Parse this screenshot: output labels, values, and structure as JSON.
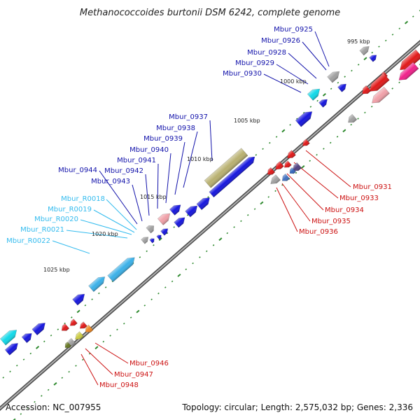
{
  "title": "Methanococcoides burtonii DSM 6242, complete genome",
  "footer": {
    "accession": "Accession: NC_007955",
    "stats": "Topology: circular; Length: 2,575,032 bp; Genes: 2,336"
  },
  "colors": {
    "backbone": "#808080",
    "tick": "#2f8a2f",
    "forward_label": "#1111aa",
    "rna_label": "#33bbee",
    "reverse_label": "#cc1111",
    "cds_forward": "#1515dd",
    "rna": "#3ab0e8",
    "cds_reverse": "#e01818",
    "pseudo_olive": "#b8b070",
    "grey": "#a0a0a0",
    "cyan": "#10d8e8",
    "pink": "#f0a0a8",
    "magenta": "#f0208a"
  },
  "kbp_markers": [
    "995 kbp",
    "1000 kbp",
    "1005 kbp",
    "1010 kbp",
    "1015 kbp",
    "1020 kbp",
    "1025 kbp"
  ],
  "forward_labels": [
    "Mbur_0925",
    "Mbur_0926",
    "Mbur_0928",
    "Mbur_0929",
    "Mbur_0930",
    "Mbur_0937",
    "Mbur_0938",
    "Mbur_0939",
    "Mbur_0940",
    "Mbur_0941",
    "Mbur_0942",
    "Mbur_0943",
    "Mbur_0944"
  ],
  "rna_labels": [
    "Mbur_R0018",
    "Mbur_R0019",
    "Mbur_R0020",
    "Mbur_R0021",
    "Mbur_R0022"
  ],
  "reverse_labels": [
    "Mbur_0931",
    "Mbur_0933",
    "Mbur_0934",
    "Mbur_0935",
    "Mbur_0936",
    "Mbur_0946",
    "Mbur_0947",
    "Mbur_0948"
  ]
}
